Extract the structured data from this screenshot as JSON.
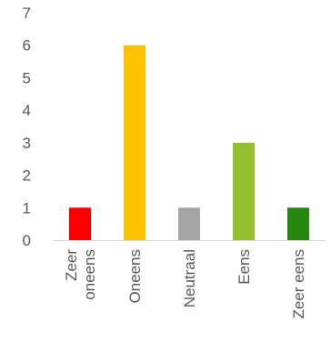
{
  "chart_data": {
    "type": "bar",
    "categories": [
      "Zeer oneens",
      "Oneens",
      "Neutraal",
      "Eens",
      "Zeer eens"
    ],
    "category_lines": [
      [
        "Zeer",
        "oneens"
      ],
      [
        "Oneens"
      ],
      [
        "Neutraal"
      ],
      [
        "Eens"
      ],
      [
        "Zeer eens"
      ]
    ],
    "values": [
      1,
      6,
      1,
      3,
      1
    ],
    "colors": [
      "#ff0000",
      "#ffc000",
      "#a5a5a5",
      "#92c02e",
      "#26880e"
    ],
    "ylim": [
      0,
      7
    ],
    "yticks": [
      "0",
      "1",
      "2",
      "3",
      "4",
      "5",
      "6",
      "7"
    ],
    "grid": false,
    "title": "",
    "xlabel": "",
    "ylabel": ""
  }
}
